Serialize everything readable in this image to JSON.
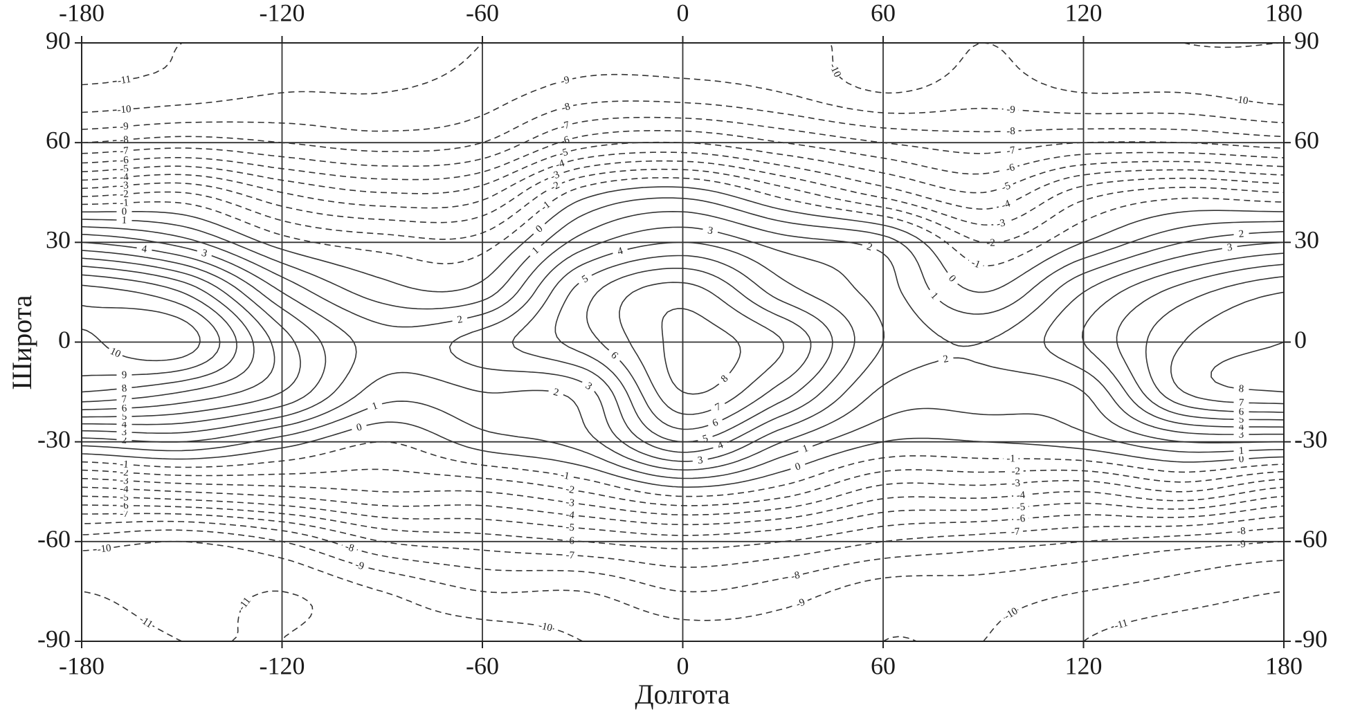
{
  "chart_data": {
    "type": "contour",
    "x_label": "Долгота",
    "y_label": "Широта",
    "xlim": [
      -180,
      180
    ],
    "ylim": [
      -90,
      90
    ],
    "xticks": [
      -180,
      -120,
      -60,
      0,
      60,
      120,
      180
    ],
    "yticks": [
      -90,
      -60,
      -30,
      0,
      30,
      60,
      90
    ],
    "grid": true,
    "negative_dashed": true,
    "color": "#333333",
    "levels": [
      -11,
      -10,
      -9,
      -8,
      -7,
      -6,
      -5,
      -4,
      -3,
      -2,
      -1,
      0,
      1,
      2,
      3,
      4,
      5,
      6,
      7,
      8,
      9,
      10
    ],
    "x": [
      -180,
      -150,
      -120,
      -90,
      -60,
      -30,
      0,
      30,
      60,
      90,
      120,
      150,
      180
    ],
    "y": [
      -90,
      -75,
      -60,
      -45,
      -30,
      -15,
      0,
      15,
      30,
      45,
      60,
      75,
      90
    ],
    "z": [
      [
        -11.5,
        -11,
        -11,
        -10.5,
        -10.5,
        -10,
        -9.5,
        -9.5,
        -10,
        -10,
        -11,
        -11.5,
        -11.5
      ],
      [
        -11,
        -10.5,
        -11,
        -10,
        -9,
        -9,
        -8,
        -8.5,
        -9.5,
        -9.5,
        -10,
        -10.5,
        -11
      ],
      [
        -9.5,
        -10,
        -9,
        -7,
        -6.5,
        -6,
        -5.5,
        -6,
        -7,
        -7.5,
        -8,
        -8.5,
        -9
      ],
      [
        -4.5,
        -4,
        -3.5,
        -3,
        -3,
        -2,
        -0.5,
        -1.5,
        -3.5,
        -3.5,
        -4,
        -3,
        -4.5
      ],
      [
        1.5,
        2,
        0.5,
        -1,
        0.5,
        1.5,
        5,
        2,
        0,
        0,
        0.5,
        2,
        2
      ],
      [
        8,
        7,
        5,
        1.5,
        2,
        2.5,
        8,
        5.5,
        1.8,
        1.5,
        2,
        7,
        8
      ],
      [
        9.8,
        10.6,
        5.5,
        2.5,
        3.5,
        5.5,
        8.3,
        7,
        3,
        2,
        4,
        7,
        8
      ],
      [
        9.5,
        8,
        3,
        0.5,
        0.5,
        5.5,
        7.5,
        4.5,
        2.5,
        0,
        3,
        5.5,
        7
      ],
      [
        4,
        2.5,
        -0.5,
        -1.5,
        -1.5,
        2.5,
        4,
        2.5,
        1.5,
        -2,
        0,
        2,
        3
      ],
      [
        -2.5,
        -2,
        -4,
        -5,
        -4.5,
        -0.5,
        0.5,
        -1.5,
        -3.5,
        -5,
        -2.5,
        -1.5,
        -2
      ],
      [
        -8,
        -7.5,
        -8,
        -8.5,
        -8,
        -5.5,
        -5,
        -6,
        -7,
        -7.5,
        -7,
        -7,
        -7.5
      ],
      [
        -10.8,
        -10.5,
        -10,
        -10,
        -9.5,
        -8.5,
        -8.5,
        -9,
        -10,
        -9.5,
        -10,
        -10,
        -10.5
      ],
      [
        -11.2,
        -11,
        -10.5,
        -10.5,
        -10,
        -9.5,
        -9.5,
        -9.5,
        -10.5,
        -10,
        -10.5,
        -11,
        -11
      ]
    ]
  }
}
